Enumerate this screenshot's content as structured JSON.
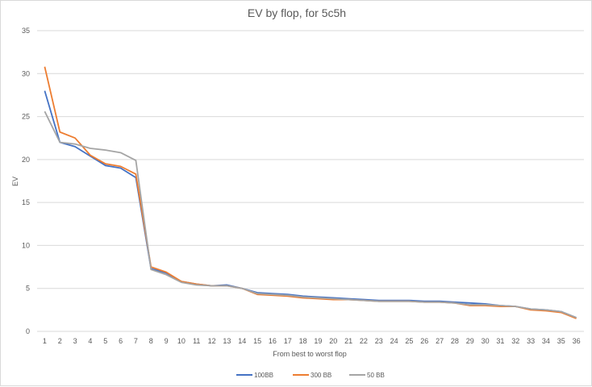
{
  "chart_data": {
    "type": "line",
    "title": "EV by flop, for 5c5h",
    "xlabel": "From best to worst flop",
    "ylabel": "EV",
    "ylim": [
      0,
      35
    ],
    "yticks": [
      0,
      5,
      10,
      15,
      20,
      25,
      30,
      35
    ],
    "grid": true,
    "legend": "bottom",
    "categories": [
      "1",
      "2",
      "3",
      "4",
      "5",
      "6",
      "7",
      "8",
      "9",
      "10",
      "11",
      "12",
      "13",
      "14",
      "15",
      "16",
      "17",
      "18",
      "19",
      "20",
      "21",
      "22",
      "23",
      "24",
      "25",
      "26",
      "27",
      "28",
      "29",
      "30",
      "31",
      "32",
      "33",
      "34",
      "35",
      "36"
    ],
    "series": [
      {
        "name": "100BB",
        "color": "#4472c4",
        "values": [
          28.0,
          22.0,
          21.5,
          20.4,
          19.3,
          19.0,
          17.9,
          7.3,
          6.8,
          5.8,
          5.5,
          5.3,
          5.4,
          5.0,
          4.5,
          4.4,
          4.3,
          4.1,
          4.0,
          3.9,
          3.8,
          3.7,
          3.6,
          3.6,
          3.6,
          3.5,
          3.5,
          3.4,
          3.3,
          3.2,
          3.0,
          2.9,
          2.6,
          2.5,
          2.3,
          1.6
        ]
      },
      {
        "name": "300 BB",
        "color": "#ed7d31",
        "values": [
          30.8,
          23.2,
          22.5,
          20.5,
          19.5,
          19.2,
          18.3,
          7.5,
          6.9,
          5.8,
          5.5,
          5.3,
          5.3,
          5.0,
          4.3,
          4.2,
          4.1,
          3.9,
          3.8,
          3.7,
          3.7,
          3.6,
          3.5,
          3.5,
          3.5,
          3.4,
          3.4,
          3.3,
          3.0,
          3.0,
          2.9,
          2.9,
          2.5,
          2.4,
          2.2,
          1.5
        ]
      },
      {
        "name": "50 BB",
        "color": "#a5a5a5",
        "values": [
          25.6,
          22.0,
          21.8,
          21.3,
          21.1,
          20.8,
          19.9,
          7.2,
          6.6,
          5.7,
          5.4,
          5.3,
          5.3,
          5.0,
          4.4,
          4.3,
          4.2,
          4.0,
          3.9,
          3.8,
          3.7,
          3.6,
          3.5,
          3.5,
          3.5,
          3.4,
          3.4,
          3.3,
          3.1,
          3.1,
          3.0,
          2.9,
          2.6,
          2.5,
          2.3,
          1.6
        ]
      }
    ]
  }
}
